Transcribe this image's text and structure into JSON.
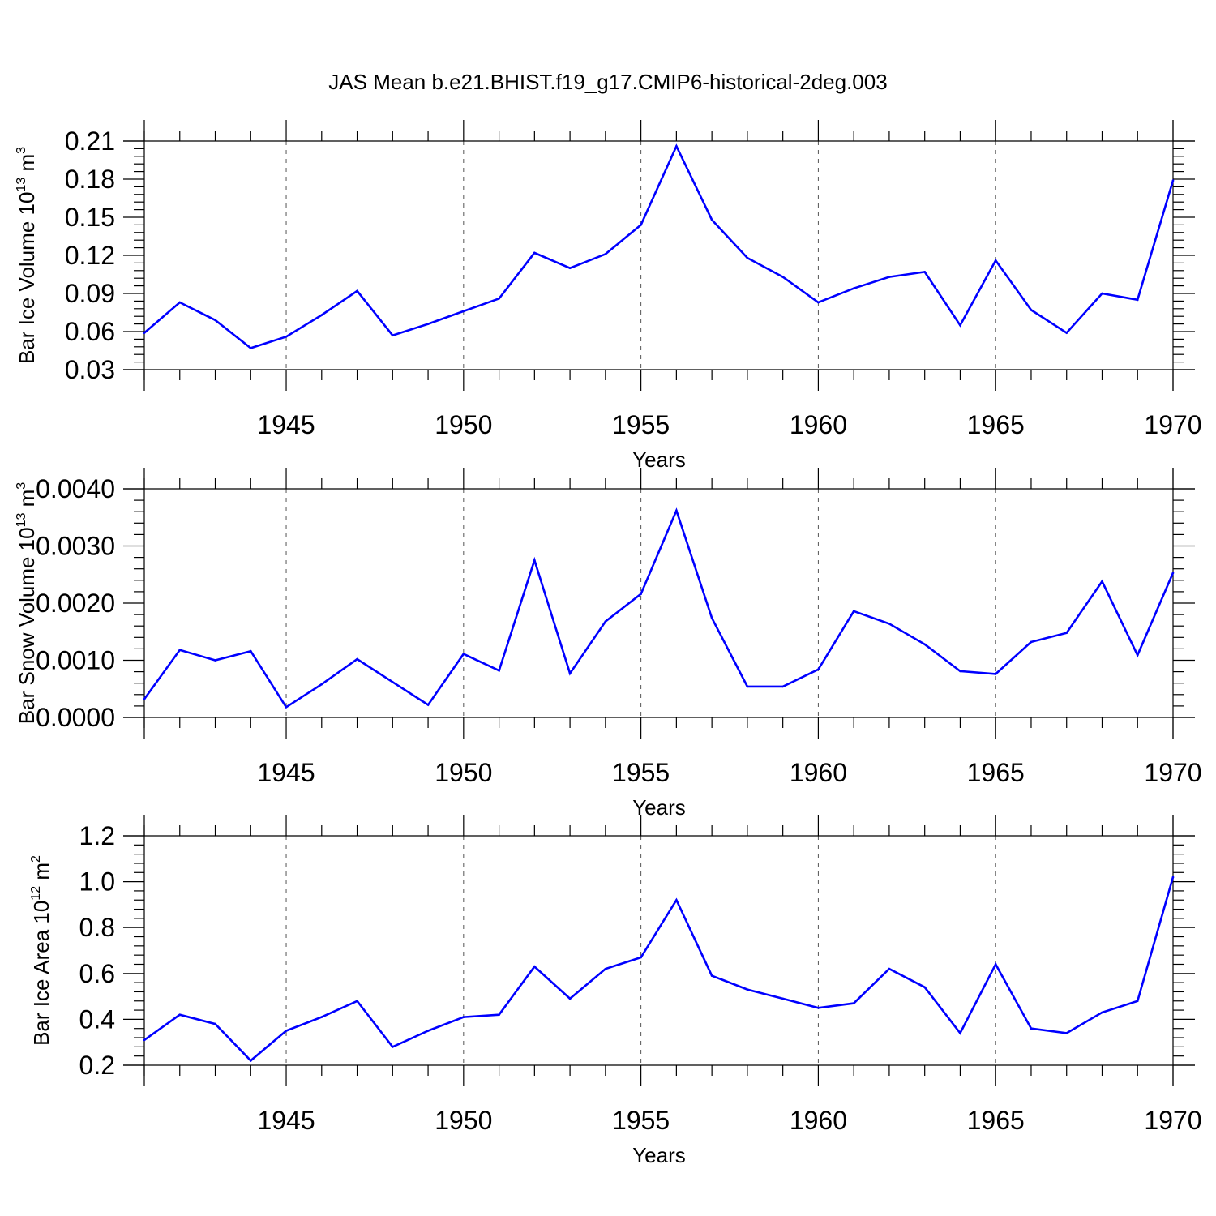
{
  "title": "JAS Mean b.e21.BHIST.f19_g17.CMIP6-historical-2deg.003",
  "line_color": "#0000ff",
  "chart_data": [
    {
      "type": "line",
      "title": "JAS Mean b.e21.BHIST.f19_g17.CMIP6-historical-2deg.003",
      "xlabel": "Years",
      "ylabel": "Bar Ice Volume 10",
      "ylabel_sup": "13",
      "ylabel_unit": " m",
      "ylabel_unit_sup": "3",
      "xlim": [
        1941,
        1970
      ],
      "ylim": [
        0.03,
        0.21
      ],
      "yticks": [
        "0.03",
        "0.06",
        "0.09",
        "0.12",
        "0.15",
        "0.18",
        "0.21"
      ],
      "xticks": [
        "1945",
        "1950",
        "1955",
        "1960",
        "1965",
        "1970"
      ],
      "grid": "dashed vertical lines at major x ticks",
      "series": [
        {
          "name": "Bar Ice Volume",
          "x": [
            1941,
            1942,
            1943,
            1944,
            1945,
            1946,
            1947,
            1948,
            1949,
            1950,
            1951,
            1952,
            1953,
            1954,
            1955,
            1956,
            1957,
            1958,
            1959,
            1960,
            1961,
            1962,
            1963,
            1964,
            1965,
            1966,
            1967,
            1968,
            1969,
            1970
          ],
          "values": [
            0.059,
            0.083,
            0.069,
            0.047,
            0.056,
            0.073,
            0.092,
            0.057,
            0.066,
            0.076,
            0.086,
            0.122,
            0.11,
            0.121,
            0.144,
            0.206,
            0.148,
            0.118,
            0.103,
            0.083,
            0.094,
            0.103,
            0.107,
            0.065,
            0.116,
            0.077,
            0.059,
            0.09,
            0.085,
            0.179
          ]
        }
      ]
    },
    {
      "type": "line",
      "xlabel": "Years",
      "ylabel": "Bar Snow Volume 10",
      "ylabel_sup": "13",
      "ylabel_unit": " m",
      "ylabel_unit_sup": "3",
      "xlim": [
        1941,
        1970
      ],
      "ylim": [
        0.0,
        0.004
      ],
      "yticks": [
        "0.0000",
        "0.0010",
        "0.0020",
        "0.0030",
        "0.0040"
      ],
      "xticks": [
        "1945",
        "1950",
        "1955",
        "1960",
        "1965",
        "1970"
      ],
      "grid": "dashed vertical lines at major x ticks",
      "series": [
        {
          "name": "Bar Snow Volume",
          "x": [
            1941,
            1942,
            1943,
            1944,
            1945,
            1946,
            1947,
            1948,
            1949,
            1950,
            1951,
            1952,
            1953,
            1954,
            1955,
            1956,
            1957,
            1958,
            1959,
            1960,
            1961,
            1962,
            1963,
            1964,
            1965,
            1966,
            1967,
            1968,
            1969,
            1970
          ],
          "values": [
            0.00032,
            0.00118,
            0.001,
            0.00116,
            0.00018,
            0.00058,
            0.00102,
            0.00062,
            0.00022,
            0.00111,
            0.00082,
            0.00275,
            0.00077,
            0.00168,
            0.00216,
            0.00362,
            0.00174,
            0.00054,
            0.00054,
            0.00084,
            0.00186,
            0.00164,
            0.00128,
            0.00081,
            0.00076,
            0.00132,
            0.00148,
            0.00238,
            0.00109,
            0.00253
          ]
        }
      ]
    },
    {
      "type": "line",
      "xlabel": "Years",
      "ylabel": "Bar Ice Area 10",
      "ylabel_sup": "12",
      "ylabel_unit": " m",
      "ylabel_unit_sup": "2",
      "xlim": [
        1941,
        1970
      ],
      "ylim": [
        0.2,
        1.2
      ],
      "yticks": [
        "0.2",
        "0.4",
        "0.6",
        "0.8",
        "1.0",
        "1.2"
      ],
      "xticks": [
        "1945",
        "1950",
        "1955",
        "1960",
        "1965",
        "1970"
      ],
      "grid": "dashed vertical lines at major x ticks",
      "series": [
        {
          "name": "Bar Ice Area",
          "x": [
            1941,
            1942,
            1943,
            1944,
            1945,
            1946,
            1947,
            1948,
            1949,
            1950,
            1951,
            1952,
            1953,
            1954,
            1955,
            1956,
            1957,
            1958,
            1959,
            1960,
            1961,
            1962,
            1963,
            1964,
            1965,
            1966,
            1967,
            1968,
            1969,
            1970
          ],
          "values": [
            0.31,
            0.42,
            0.38,
            0.22,
            0.35,
            0.41,
            0.48,
            0.28,
            0.35,
            0.41,
            0.42,
            0.63,
            0.49,
            0.62,
            0.67,
            0.92,
            0.59,
            0.53,
            0.49,
            0.45,
            0.47,
            0.62,
            0.54,
            0.34,
            0.64,
            0.36,
            0.34,
            0.43,
            0.48,
            1.02
          ]
        }
      ]
    }
  ]
}
